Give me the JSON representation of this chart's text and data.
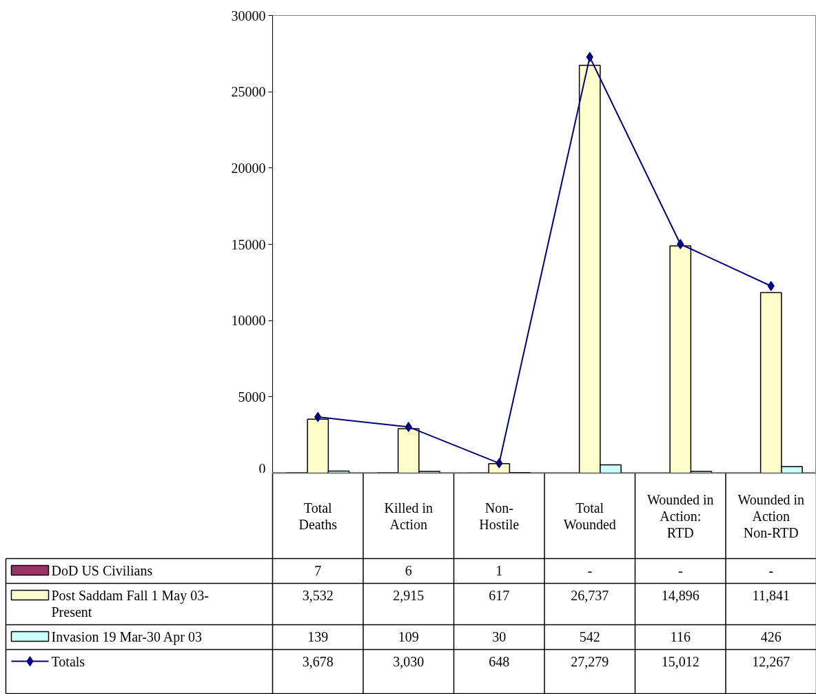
{
  "chart_data": {
    "type": "bar",
    "categories": [
      "Total Deaths",
      "Killed in Action",
      "Non-Hostile",
      "Total Wounded",
      "Wounded in Action: RTD",
      "Wounded in Action Non-RTD"
    ],
    "series": [
      {
        "name": "DoD US Civilians",
        "color": "#993366",
        "values": [
          7,
          6,
          1,
          null,
          null,
          null
        ],
        "value_labels": [
          "7",
          "6",
          "1",
          "-",
          "-",
          "-"
        ]
      },
      {
        "name": "Post Saddam Fall 1 May 03-Present",
        "color": "#ffffcc",
        "values": [
          3532,
          2915,
          617,
          26737,
          14896,
          11841
        ],
        "value_labels": [
          "3,532",
          "2,915",
          "617",
          "26,737",
          "14,896",
          "11,841"
        ]
      },
      {
        "name": "Invasion 19 Mar-30 Apr 03",
        "color": "#ccffff",
        "values": [
          139,
          109,
          30,
          542,
          116,
          426
        ],
        "value_labels": [
          "139",
          "109",
          "30",
          "542",
          "116",
          "426"
        ]
      },
      {
        "name": "Totals",
        "type": "line",
        "color": "#000080",
        "marker": "diamond",
        "values": [
          3678,
          3030,
          648,
          27279,
          15012,
          12267
        ],
        "value_labels": [
          "3,678",
          "3,030",
          "648",
          "27,279",
          "15,012",
          "12,267"
        ]
      }
    ],
    "ylim": [
      0,
      30000
    ],
    "yticks": [
      0,
      5000,
      10000,
      15000,
      20000,
      25000,
      30000
    ],
    "grid": false,
    "legend": "bottom"
  }
}
